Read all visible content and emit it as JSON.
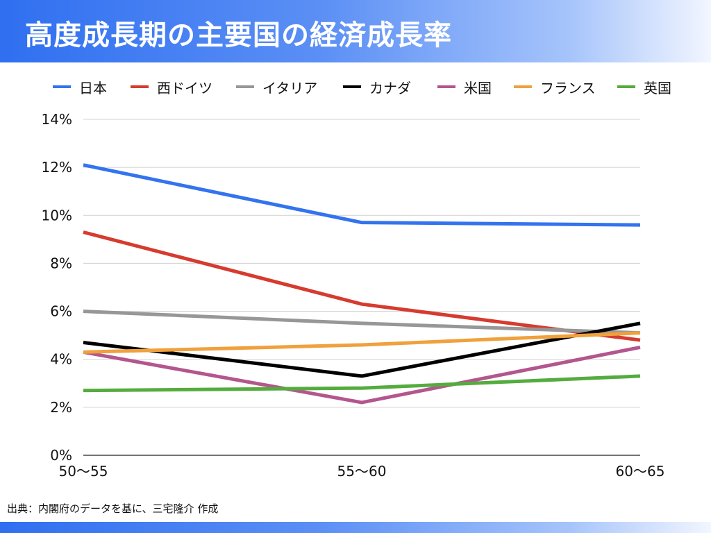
{
  "page": {
    "title": "高度成長期の主要国の経済成長率",
    "source": "出典：内閣府のデータを基に、三宅隆介 作成"
  },
  "chart_data": {
    "type": "line",
    "title": "高度成長期の主要国の経済成長率",
    "categories": [
      "50〜55",
      "55〜60",
      "60〜65"
    ],
    "ylim": [
      0,
      14
    ],
    "yticks": [
      0,
      2,
      4,
      6,
      8,
      10,
      12,
      14
    ],
    "ytick_labels": [
      "0%",
      "2%",
      "4%",
      "6%",
      "8%",
      "10%",
      "12%",
      "14%"
    ],
    "grid": true,
    "legend_position": "top",
    "series": [
      {
        "name": "日本",
        "values": [
          12.1,
          9.7,
          9.6
        ],
        "color": "#3473ee"
      },
      {
        "name": "西ドイツ",
        "values": [
          9.3,
          6.3,
          4.8
        ],
        "color": "#d63b2f"
      },
      {
        "name": "イタリア",
        "values": [
          6.0,
          5.5,
          5.1
        ],
        "color": "#979797"
      },
      {
        "name": "カナダ",
        "values": [
          4.7,
          3.3,
          5.5
        ],
        "color": "#000000"
      },
      {
        "name": "米国",
        "values": [
          4.3,
          2.2,
          4.5
        ],
        "color": "#b4568e"
      },
      {
        "name": "フランス",
        "values": [
          4.3,
          4.6,
          5.1
        ],
        "color": "#f0a03c"
      },
      {
        "name": "英国",
        "values": [
          2.7,
          2.8,
          3.3
        ],
        "color": "#55ac3e"
      }
    ]
  }
}
